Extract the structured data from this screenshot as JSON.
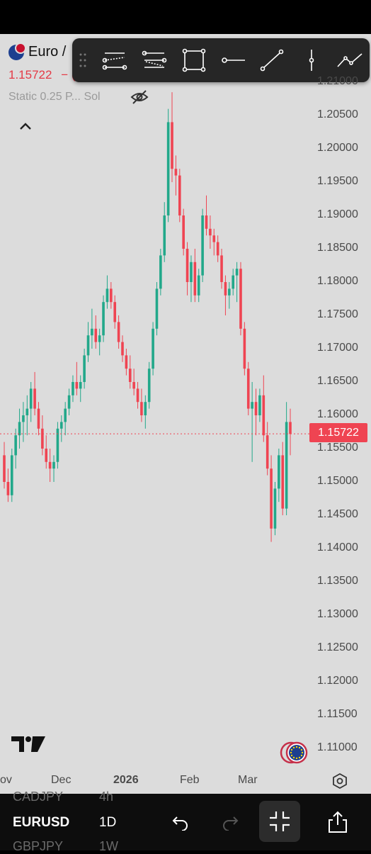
{
  "symbol": {
    "name": "Euro /",
    "price": "1.15722",
    "price_suffix": "− (           )",
    "indicator": "Static 0.25 P... Sol"
  },
  "toolbar": {
    "tools": [
      "grip-handle-icon",
      "trend-lines-icon",
      "fib-levels-icon",
      "rectangle-icon",
      "horizontal-line-icon",
      "trend-line-icon",
      "vertical-line-icon",
      "path-icon"
    ]
  },
  "price_axis": [
    "1.21000",
    "1.20500",
    "1.20000",
    "1.19500",
    "1.19000",
    "1.18500",
    "1.18000",
    "1.17500",
    "1.17000",
    "1.16500",
    "1.16000",
    "1.15500",
    "1.15000",
    "1.14500",
    "1.14000",
    "1.13500",
    "1.13000",
    "1.12500",
    "1.12000",
    "1.11500",
    "1.11000"
  ],
  "current_price_tag": "1.15722",
  "time_axis": [
    "ov",
    "Dec",
    "2026",
    "Feb",
    "Mar"
  ],
  "bottom": {
    "symbol_prev": "CADJPY",
    "interval_prev": "4h",
    "symbol": "EURUSD",
    "interval": "1D",
    "symbol_next": "GBPJPY",
    "interval_next": "1W"
  },
  "colors": {
    "up": "#22a88a",
    "down": "#ef4452",
    "background": "#dcdcdc"
  },
  "chart_data": {
    "type": "candlestick",
    "ylim": [
      1.105,
      1.212
    ],
    "last": 1.15722,
    "candles": [
      [
        1.154,
        1.156,
        1.149,
        1.15
      ],
      [
        1.15,
        1.152,
        1.147,
        1.148
      ],
      [
        1.148,
        1.155,
        1.147,
        1.154
      ],
      [
        1.154,
        1.158,
        1.152,
        1.157
      ],
      [
        1.157,
        1.161,
        1.155,
        1.159
      ],
      [
        1.159,
        1.162,
        1.156,
        1.16
      ],
      [
        1.16,
        1.163,
        1.157,
        1.161
      ],
      [
        1.161,
        1.165,
        1.159,
        1.164
      ],
      [
        1.164,
        1.1665,
        1.16,
        1.161
      ],
      [
        1.161,
        1.162,
        1.157,
        1.158
      ],
      [
        1.158,
        1.16,
        1.154,
        1.155
      ],
      [
        1.155,
        1.157,
        1.152,
        1.153
      ],
      [
        1.153,
        1.155,
        1.15,
        1.152
      ],
      [
        1.152,
        1.154,
        1.15,
        1.153
      ],
      [
        1.153,
        1.159,
        1.152,
        1.158
      ],
      [
        1.158,
        1.16,
        1.156,
        1.159
      ],
      [
        1.159,
        1.162,
        1.157,
        1.161
      ],
      [
        1.161,
        1.164,
        1.16,
        1.163
      ],
      [
        1.163,
        1.166,
        1.162,
        1.165
      ],
      [
        1.165,
        1.168,
        1.163,
        1.164
      ],
      [
        1.164,
        1.166,
        1.162,
        1.165
      ],
      [
        1.165,
        1.17,
        1.164,
        1.169
      ],
      [
        1.169,
        1.174,
        1.168,
        1.172
      ],
      [
        1.172,
        1.176,
        1.17,
        1.173
      ],
      [
        1.173,
        1.175,
        1.17,
        1.171
      ],
      [
        1.171,
        1.173,
        1.169,
        1.172
      ],
      [
        1.172,
        1.178,
        1.171,
        1.177
      ],
      [
        1.177,
        1.181,
        1.176,
        1.179
      ],
      [
        1.179,
        1.18,
        1.176,
        1.177
      ],
      [
        1.177,
        1.178,
        1.173,
        1.174
      ],
      [
        1.174,
        1.175,
        1.17,
        1.171
      ],
      [
        1.171,
        1.172,
        1.168,
        1.169
      ],
      [
        1.169,
        1.17,
        1.166,
        1.167
      ],
      [
        1.167,
        1.169,
        1.164,
        1.165
      ],
      [
        1.165,
        1.167,
        1.163,
        1.164
      ],
      [
        1.164,
        1.165,
        1.161,
        1.162
      ],
      [
        1.162,
        1.164,
        1.159,
        1.16
      ],
      [
        1.16,
        1.163,
        1.158,
        1.162
      ],
      [
        1.162,
        1.168,
        1.161,
        1.167
      ],
      [
        1.167,
        1.174,
        1.166,
        1.173
      ],
      [
        1.173,
        1.18,
        1.172,
        1.179
      ],
      [
        1.179,
        1.185,
        1.178,
        1.184
      ],
      [
        1.184,
        1.192,
        1.183,
        1.19
      ],
      [
        1.19,
        1.206,
        1.189,
        1.204
      ],
      [
        1.204,
        1.2085,
        1.195,
        1.197
      ],
      [
        1.197,
        1.199,
        1.193,
        1.196
      ],
      [
        1.196,
        1.197,
        1.189,
        1.19
      ],
      [
        1.19,
        1.191,
        1.184,
        1.185
      ],
      [
        1.185,
        1.186,
        1.178,
        1.18
      ],
      [
        1.18,
        1.184,
        1.177,
        1.183
      ],
      [
        1.183,
        1.185,
        1.177,
        1.178
      ],
      [
        1.178,
        1.182,
        1.177,
        1.181
      ],
      [
        1.181,
        1.191,
        1.18,
        1.19
      ],
      [
        1.19,
        1.193,
        1.187,
        1.188
      ],
      [
        1.188,
        1.19,
        1.185,
        1.187
      ],
      [
        1.187,
        1.188,
        1.184,
        1.186
      ],
      [
        1.186,
        1.187,
        1.183,
        1.184
      ],
      [
        1.184,
        1.185,
        1.179,
        1.18
      ],
      [
        1.18,
        1.181,
        1.175,
        1.178
      ],
      [
        1.178,
        1.18,
        1.176,
        1.179
      ],
      [
        1.179,
        1.182,
        1.178,
        1.181
      ],
      [
        1.181,
        1.183,
        1.177,
        1.182
      ],
      [
        1.182,
        1.183,
        1.172,
        1.173
      ],
      [
        1.173,
        1.174,
        1.166,
        1.167
      ],
      [
        1.167,
        1.168,
        1.16,
        1.161
      ],
      [
        1.161,
        1.165,
        1.153,
        1.162
      ],
      [
        1.162,
        1.164,
        1.157,
        1.16
      ],
      [
        1.16,
        1.164,
        1.159,
        1.163
      ],
      [
        1.163,
        1.166,
        1.156,
        1.157
      ],
      [
        1.157,
        1.159,
        1.151,
        1.152
      ],
      [
        1.152,
        1.154,
        1.141,
        1.143
      ],
      [
        1.143,
        1.15,
        1.142,
        1.149
      ],
      [
        1.149,
        1.155,
        1.147,
        1.154
      ],
      [
        1.154,
        1.156,
        1.145,
        1.146
      ],
      [
        1.146,
        1.162,
        1.145,
        1.159
      ],
      [
        1.159,
        1.161,
        1.154,
        1.1572
      ]
    ]
  }
}
